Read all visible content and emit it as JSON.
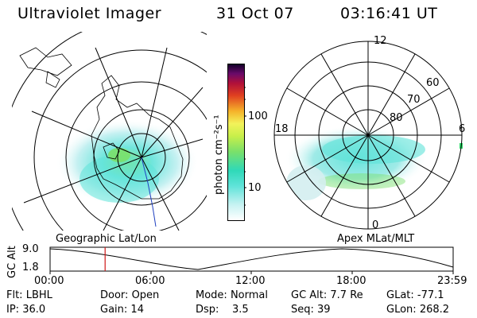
{
  "header": {
    "instrument": "Ultraviolet Imager",
    "date": "31 Oct 07",
    "time": "03:16:41 UT"
  },
  "colorbar": {
    "title": "photon cm⁻²s⁻¹",
    "ticks": [
      "100",
      "10"
    ]
  },
  "left_panel": {
    "caption": "Geographic Lat/Lon"
  },
  "right_panel": {
    "caption": "Apex MLat/MLT",
    "mlt_labels": [
      "12",
      "18",
      "6",
      "0"
    ],
    "lat_labels": [
      "60",
      "70",
      "80"
    ]
  },
  "timeline": {
    "ylabel": "GC Alt",
    "yticks": [
      "9.0",
      "1.8"
    ],
    "xticks": [
      "00:00",
      "06:00",
      "12:00",
      "18:00",
      "23:59"
    ],
    "marker_fraction": 0.1365
  },
  "status": {
    "row1": [
      {
        "label": "Flt:",
        "value": "LBHL"
      },
      {
        "label": "Door:",
        "value": "Open"
      },
      {
        "label": "Mode:",
        "value": "Normal"
      },
      {
        "label": "GC Alt:",
        "value": "7.7 Re"
      },
      {
        "label": "GLat:",
        "value": "-77.1"
      }
    ],
    "row2": [
      {
        "label": "IP:",
        "value": "36.0"
      },
      {
        "label": "Gain:",
        "value": "14"
      },
      {
        "label": "Dsp:",
        "value": "3.5"
      },
      {
        "label": "Seq:",
        "value": "39"
      },
      {
        "label": "GLon:",
        "value": "268.2"
      }
    ]
  },
  "colors": {
    "aurora_faint": "#cfeef0",
    "aurora_mid": "#5fe3d9",
    "aurora_bright": "#7ae06a",
    "marker": "#d01818"
  }
}
